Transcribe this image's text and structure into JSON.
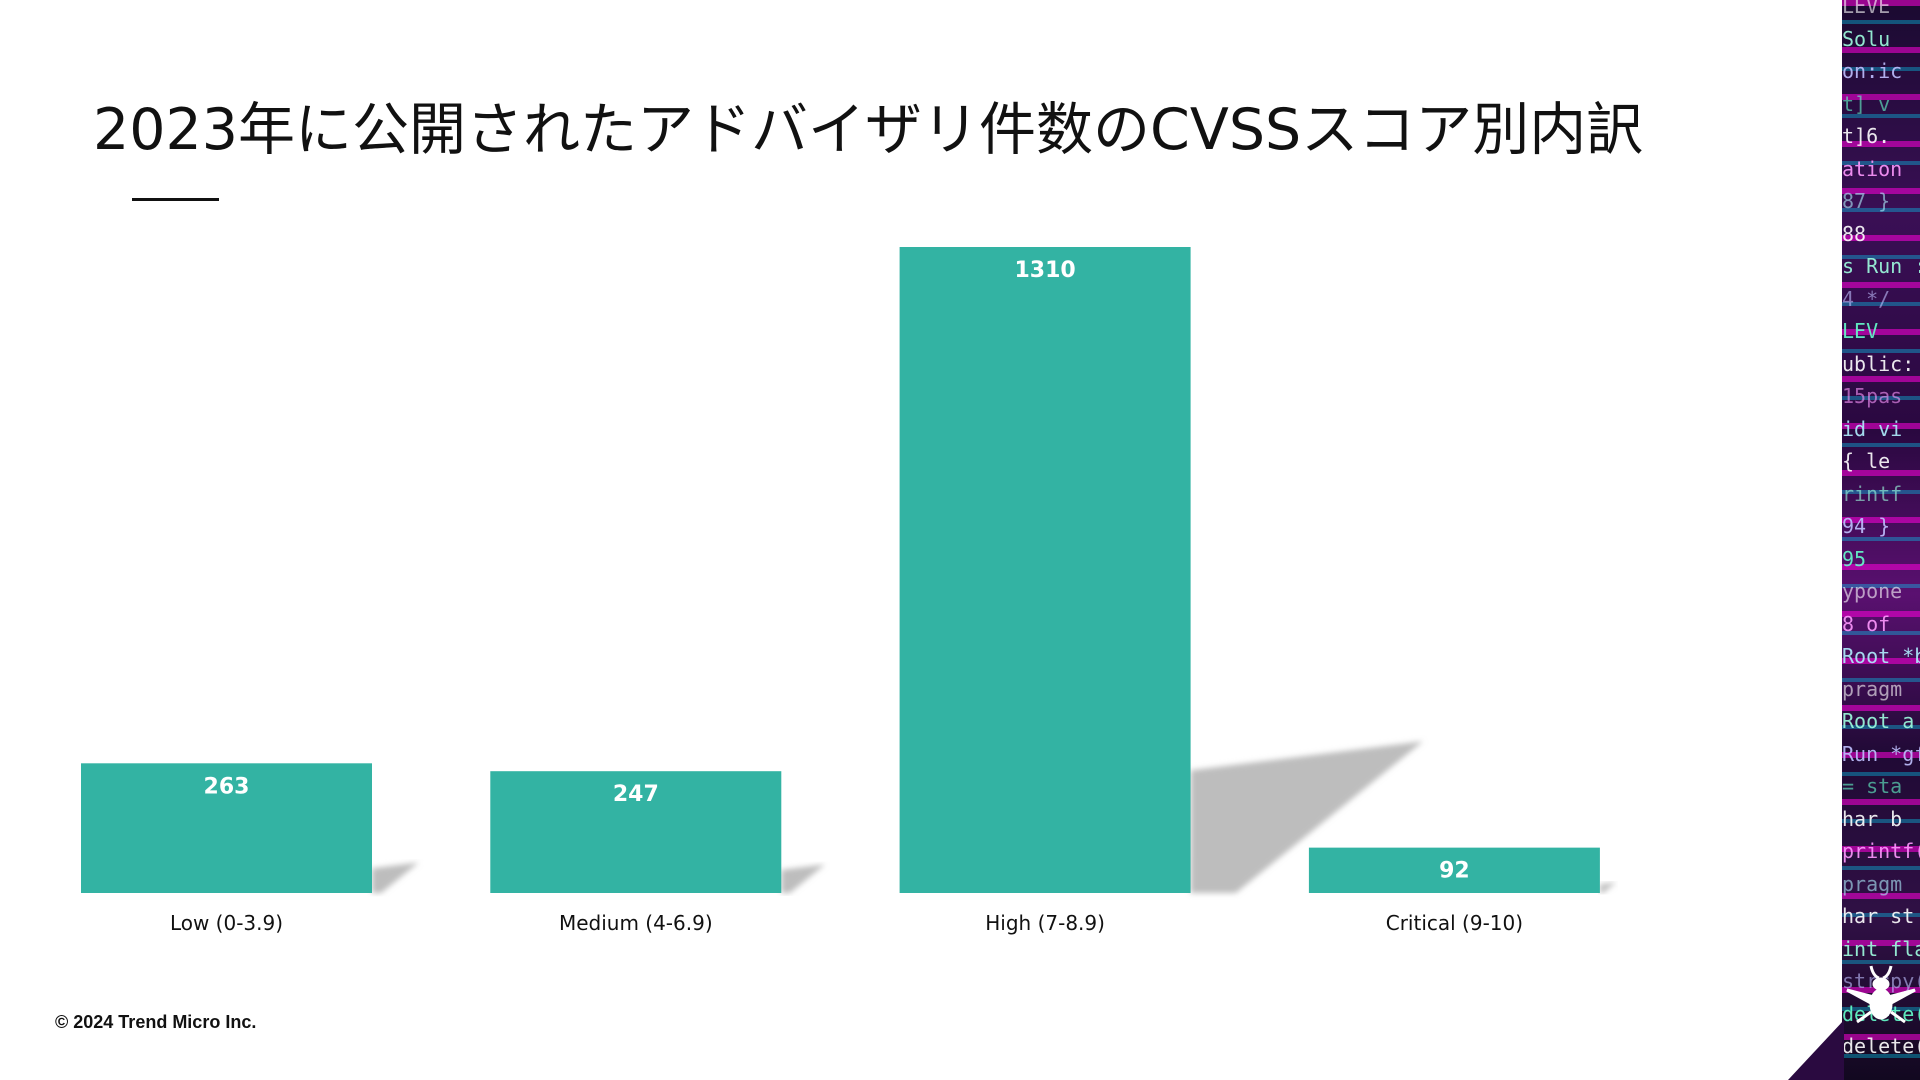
{
  "title": "2023年に公開されたアドバイザリ件数のCVSSスコア別内訳",
  "footer": "© 2024 Trend Micro Inc.",
  "colors": {
    "bar": "#33b3a3",
    "shadow": "#bdbdbd"
  },
  "side_panel": {
    "code_lines": [
      "LEVE",
      "Solu",
      "on:ic",
      "t] v",
      "t]6.",
      "ation",
      "87  }",
      "88",
      "s Run :",
      "4 */",
      "LEV",
      "ublic:",
      "15pas",
      "id vi",
      "{ le",
      "rintf",
      "94 }",
      "95",
      "ypone",
      "8 of",
      "Root *b",
      "pragm",
      "Root a",
      "Run *gf",
      "= sta",
      "har b",
      "printf(",
      "pragm",
      "har st",
      "int fla",
      "strcpy(",
      "delete(",
      "delete("
    ],
    "logo_icon": "beetle-logo-icon"
  },
  "chart_data": {
    "type": "bar",
    "title": "2023年に公開されたアドバイザリ件数のCVSSスコア別内訳",
    "categories": [
      "Low (0-3.9)",
      "Medium (4-6.9)",
      "High (7-8.9)",
      "Critical (9-10)"
    ],
    "values": [
      263,
      247,
      1310,
      92
    ],
    "data_labels": [
      "263",
      "247",
      "1310",
      "92"
    ],
    "xlabel": "",
    "ylabel": "",
    "ylim": [
      0,
      1310
    ],
    "grid": false,
    "legend": "none"
  }
}
